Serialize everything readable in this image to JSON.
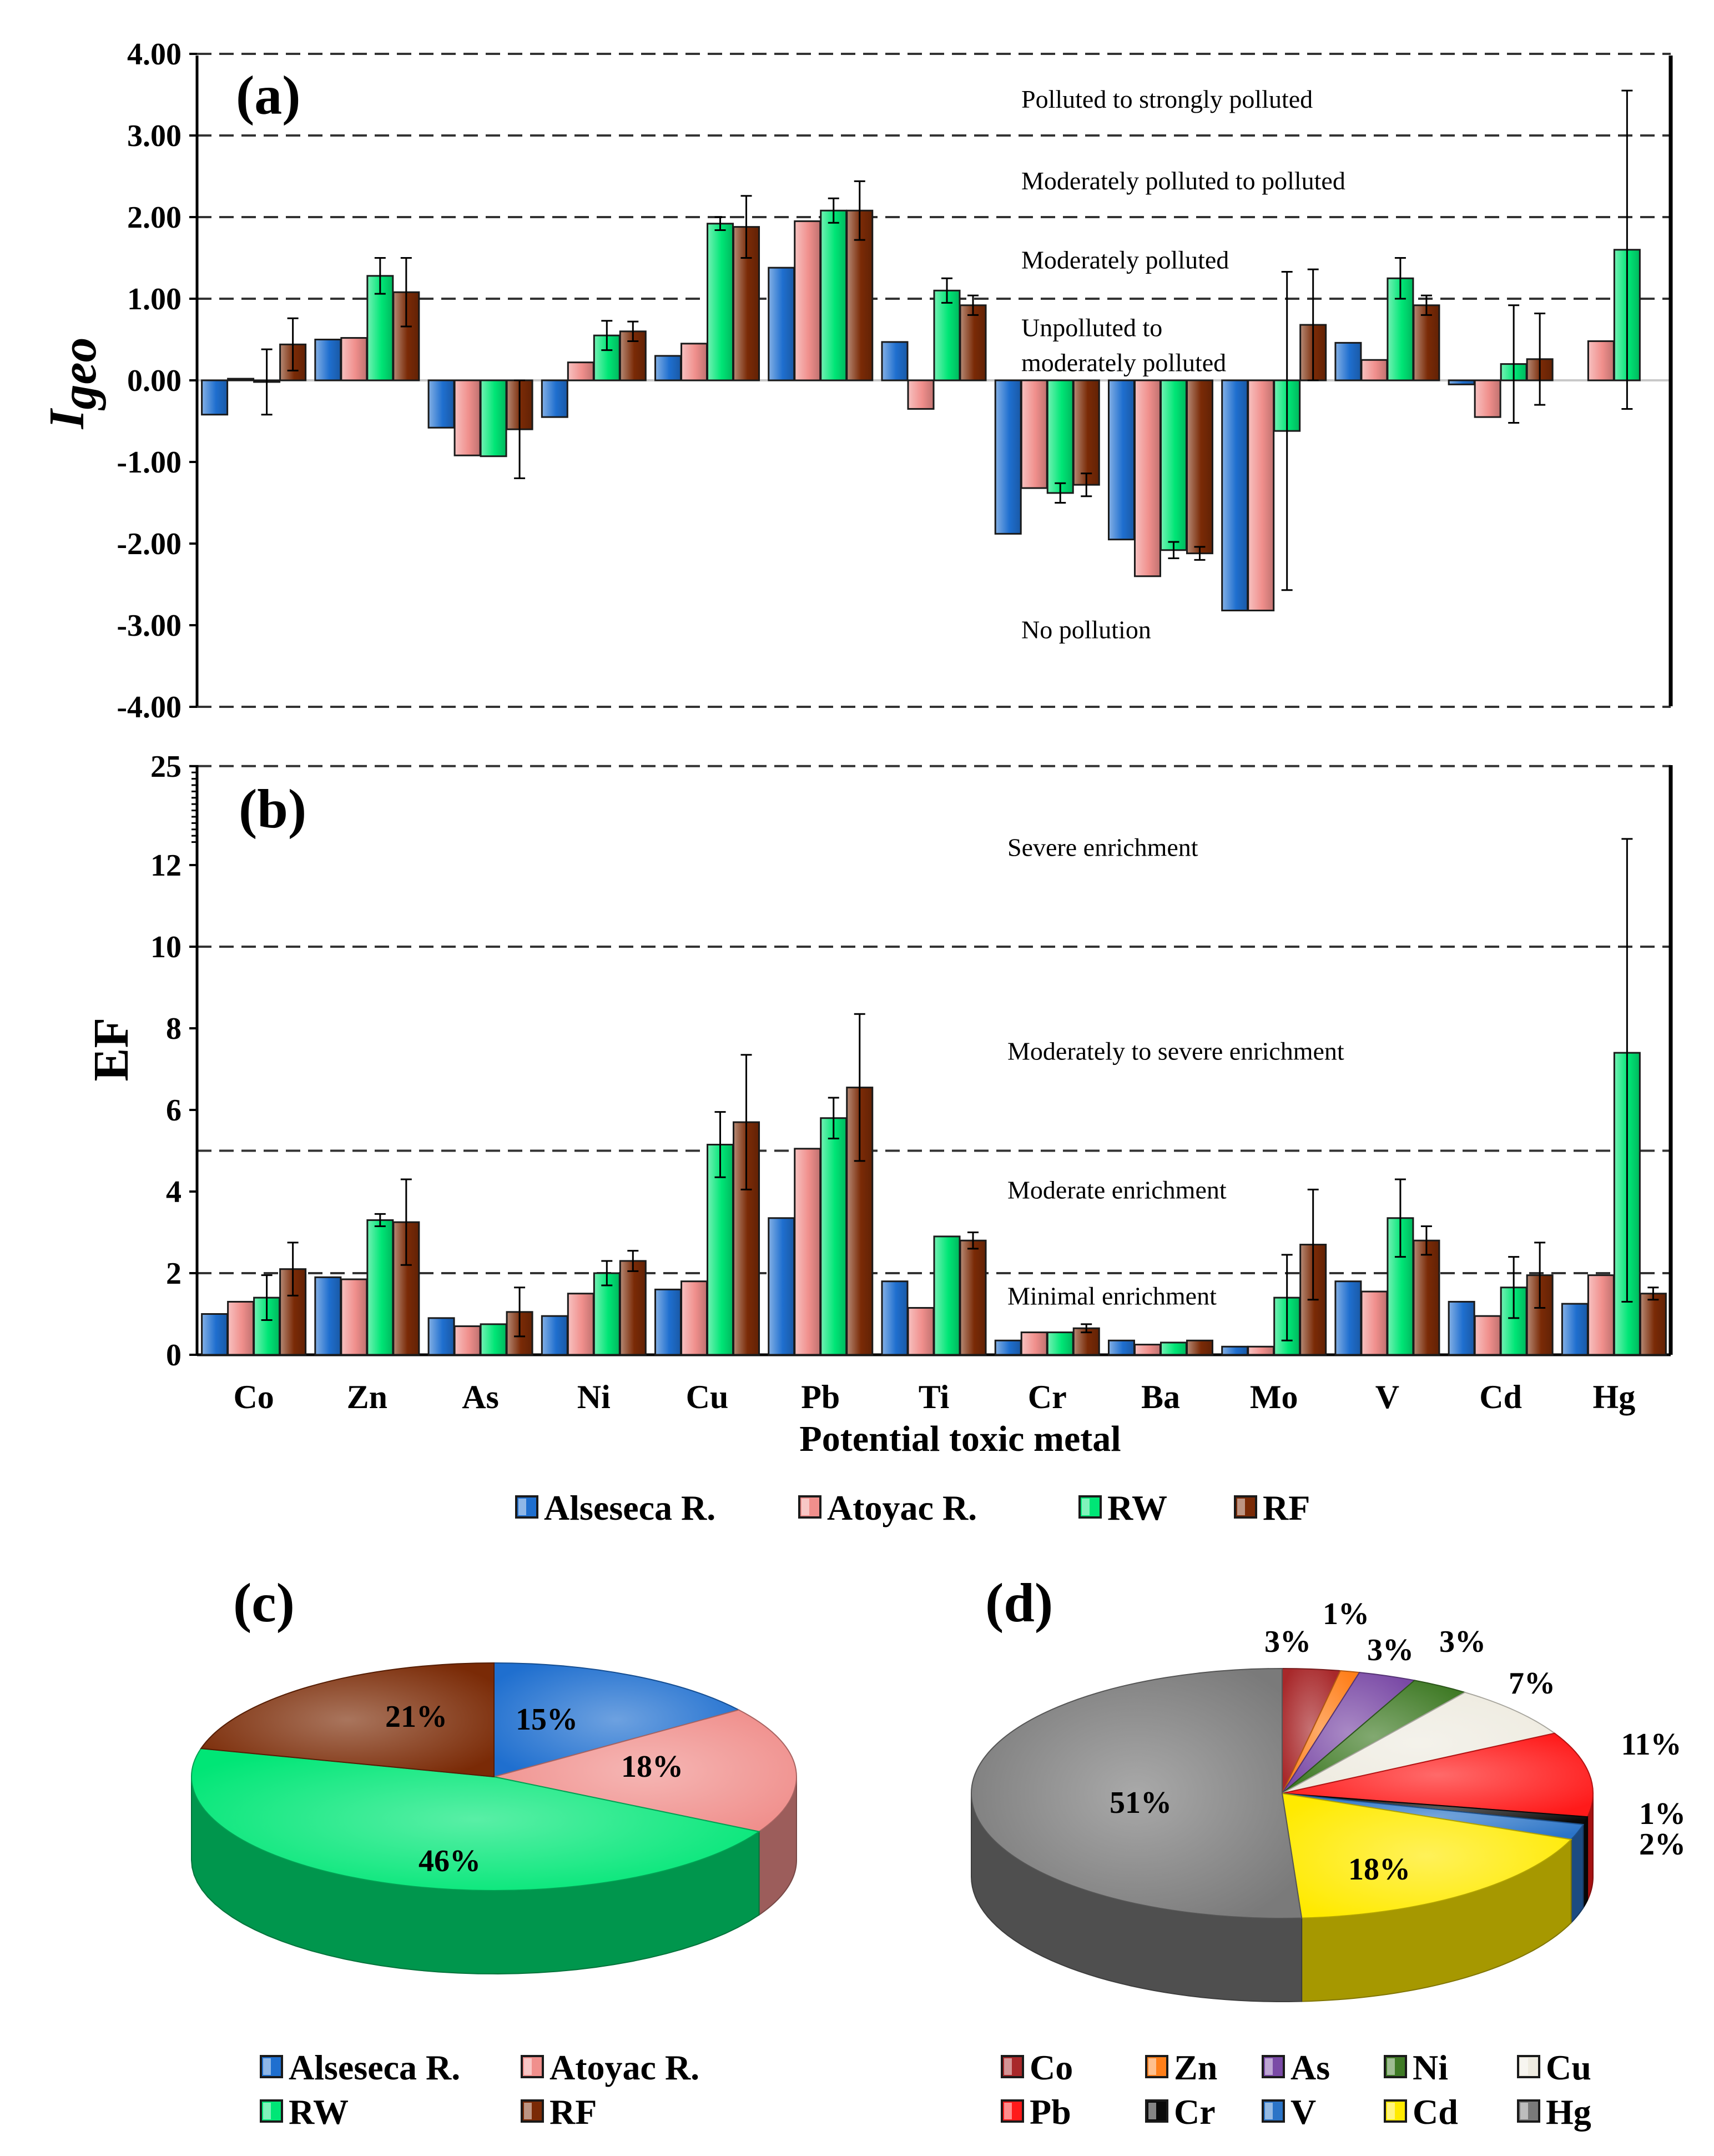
{
  "chart_data": [
    {
      "id": "a",
      "type": "bar",
      "panel_label": "(a)",
      "ylabel_main": "I",
      "ylabel_sub": "geo",
      "ylim": [
        -4,
        4
      ],
      "yticks": [
        "-4.00",
        "-3.00",
        "-2.00",
        "-1.00",
        "0.00",
        "1.00",
        "2.00",
        "3.00",
        "4.00"
      ],
      "categories": [
        "Co",
        "Zn",
        "As",
        "Ni",
        "Cu",
        "Pb",
        "Ti",
        "Cr",
        "Ba",
        "Mo",
        "V",
        "Cd",
        "Hg"
      ],
      "series": [
        {
          "name": "Alseseca R.",
          "values": [
            -0.42,
            0.5,
            -0.58,
            -0.45,
            0.3,
            1.38,
            0.47,
            -1.88,
            -1.95,
            -2.82,
            0.46,
            -0.05,
            null
          ],
          "errors": [
            null,
            null,
            null,
            null,
            null,
            null,
            null,
            null,
            null,
            null,
            null,
            null,
            null
          ]
        },
        {
          "name": "Atoyac R.",
          "values": [
            0.02,
            0.52,
            -0.92,
            0.22,
            0.45,
            1.95,
            -0.35,
            -1.32,
            -2.4,
            -2.82,
            0.25,
            -0.45,
            0.48
          ],
          "errors": [
            null,
            null,
            null,
            null,
            null,
            null,
            null,
            null,
            null,
            null,
            null,
            null,
            null
          ]
        },
        {
          "name": "RW",
          "values": [
            -0.02,
            1.28,
            -0.93,
            0.55,
            1.92,
            2.08,
            1.1,
            -1.38,
            -2.08,
            -0.62,
            1.25,
            0.2,
            1.6
          ],
          "errors": [
            0.4,
            0.22,
            null,
            0.18,
            0.08,
            0.15,
            0.15,
            0.12,
            0.1,
            1.95,
            0.25,
            0.72,
            1.95
          ]
        },
        {
          "name": "RF",
          "values": [
            0.44,
            1.08,
            -0.6,
            0.6,
            1.88,
            2.08,
            0.92,
            -1.28,
            -2.12,
            0.68,
            0.92,
            0.26,
            null
          ],
          "errors": [
            0.32,
            0.42,
            0.6,
            0.12,
            0.38,
            0.36,
            0.12,
            0.14,
            0.08,
            0.68,
            0.12,
            0.56,
            null
          ]
        }
      ],
      "thresholds": [
        1,
        2,
        3
      ],
      "zone_labels": [
        {
          "text": "Polluted to strongly polluted",
          "value": 3.45
        },
        {
          "text": "Moderately polluted to polluted",
          "value": 2.45
        },
        {
          "text": "Moderately polluted",
          "value": 1.48
        },
        {
          "text": "Unpolluted to",
          "value": 0.65
        },
        {
          "text": "moderately polluted",
          "value": 0.22
        },
        {
          "text": "No pollution",
          "value": -3.05
        }
      ]
    },
    {
      "id": "b",
      "type": "bar",
      "panel_label": "(b)",
      "ylabel": "EF",
      "ylim": [
        0,
        25
      ],
      "yticks": [
        "0",
        "2",
        "4",
        "6",
        "8",
        "10",
        "12",
        "25"
      ],
      "categories": [
        "Co",
        "Zn",
        "As",
        "Ni",
        "Cu",
        "Pb",
        "Ti",
        "Cr",
        "Ba",
        "Mo",
        "V",
        "Cd",
        "Hg"
      ],
      "xlabel": "Potential toxic metal",
      "series": [
        {
          "name": "Alseseca R.",
          "values": [
            1.0,
            1.9,
            0.9,
            0.95,
            1.6,
            3.35,
            1.8,
            0.35,
            0.35,
            0.2,
            1.8,
            1.3,
            1.25
          ],
          "errors": [
            null,
            null,
            null,
            null,
            null,
            null,
            null,
            null,
            null,
            null,
            null,
            null,
            null
          ]
        },
        {
          "name": "Atoyac R.",
          "values": [
            1.3,
            1.85,
            0.7,
            1.5,
            1.8,
            5.05,
            1.15,
            0.55,
            0.25,
            0.2,
            1.55,
            0.95,
            1.95
          ],
          "errors": [
            null,
            null,
            null,
            null,
            null,
            null,
            null,
            null,
            null,
            null,
            null,
            null,
            null
          ]
        },
        {
          "name": "RW",
          "values": [
            1.4,
            3.3,
            0.75,
            2.0,
            5.15,
            5.8,
            2.9,
            0.55,
            0.3,
            1.4,
            3.35,
            1.65,
            7.4
          ],
          "errors": [
            0.55,
            0.15,
            null,
            0.3,
            0.8,
            0.5,
            null,
            null,
            null,
            1.05,
            0.95,
            0.75,
            6.1
          ]
        },
        {
          "name": "RF",
          "values": [
            2.1,
            3.25,
            1.05,
            2.3,
            5.7,
            6.55,
            2.8,
            0.65,
            0.35,
            2.7,
            2.8,
            1.95,
            1.5
          ],
          "errors": [
            0.65,
            1.05,
            0.6,
            0.25,
            1.65,
            1.8,
            0.2,
            0.1,
            null,
            1.35,
            0.35,
            0.8,
            0.15
          ]
        }
      ],
      "thresholds": [
        2,
        5,
        10
      ],
      "zone_labels": [
        {
          "text": "Severe enrichment",
          "value": 12.2
        },
        {
          "text": "Moderately to severe  enrichment",
          "value": 7.45
        },
        {
          "text": "Moderate enrichment",
          "value": 4.05
        },
        {
          "text": "Minimal  enrichment",
          "value": 1.45
        }
      ]
    },
    {
      "id": "c",
      "type": "pie",
      "panel_label": "(c)",
      "labels": [
        "Alseseca R.",
        "Atoyac R.",
        "RW",
        "RF"
      ],
      "values": [
        15,
        18,
        46,
        21
      ],
      "value_labels": [
        "15%",
        "18%",
        "46%",
        "21%"
      ]
    },
    {
      "id": "d",
      "type": "pie",
      "panel_label": "(d)",
      "labels": [
        "Co",
        "Zn",
        "As",
        "Ni",
        "Cu",
        "Pb",
        "Cr",
        "V",
        "Cd",
        "Hg"
      ],
      "values": [
        3,
        1,
        3,
        3,
        7,
        11,
        1,
        2,
        18,
        51
      ],
      "value_labels": [
        "3%",
        "1%",
        "3%",
        "3%",
        "7%",
        "11%",
        "1%",
        "2%",
        "18%",
        "51%"
      ]
    }
  ],
  "legends": {
    "bars": [
      "Alseseca R.",
      "Atoyac R.",
      "RW",
      "RF"
    ],
    "pie_c": [
      "Alseseca R.",
      "Atoyac R.",
      "RW",
      "RF"
    ],
    "pie_d": [
      "Co",
      "Zn",
      "As",
      "Ni",
      "Cu",
      "Pb",
      "Cr",
      "V",
      "Cd",
      "Hg"
    ]
  },
  "colors": {
    "Alseseca R.": "#1f6fcf",
    "Atoyac R.": "#f08f8c",
    "RW": "#00e676",
    "RF": "#7a2a06",
    "Co": "#a8282a",
    "Zn": "#ff7f1a",
    "As": "#7a4aa6",
    "Ni": "#3f7a25",
    "Cu": "#eeebe0",
    "Pb": "#ff1a1a",
    "Cr": "#0a0a0a",
    "V": "#2b74c7",
    "Cd": "#ffea00",
    "Hg": "#7a7a7a"
  }
}
